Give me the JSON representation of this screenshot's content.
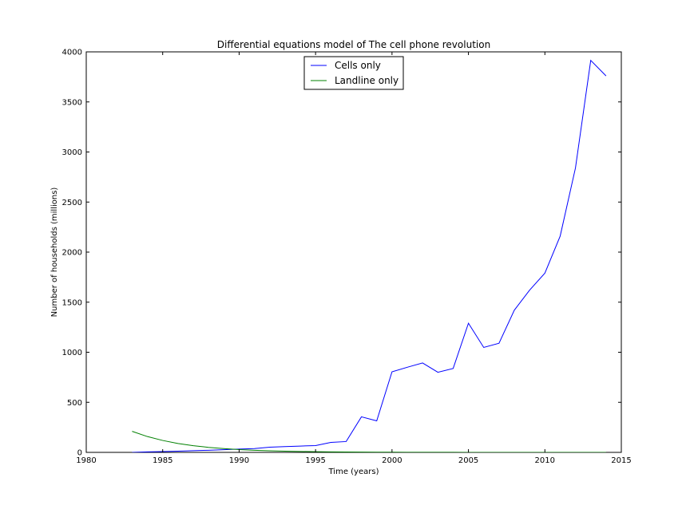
{
  "chart_data": {
    "type": "line",
    "title": "Differential equations model of The cell phone revolution",
    "xlabel": "Time (years)",
    "ylabel": "Number of households (millions)",
    "xlim": [
      1980,
      2015
    ],
    "ylim": [
      0,
      4000
    ],
    "xticks": [
      1980,
      1985,
      1990,
      1995,
      2000,
      2005,
      2010,
      2015
    ],
    "yticks": [
      0,
      500,
      1000,
      1500,
      2000,
      2500,
      3000,
      3500,
      4000
    ],
    "grid": false,
    "legend": "upper-center",
    "series": [
      {
        "name": "Cells only",
        "color": "#0000ff",
        "x": [
          1983,
          1984,
          1985,
          1986,
          1987,
          1988,
          1989,
          1990,
          1991,
          1992,
          1993,
          1994,
          1995,
          1996,
          1997,
          1998,
          1999,
          2000,
          2001,
          2002,
          2003,
          2004,
          2005,
          2006,
          2007,
          2008,
          2009,
          2010,
          2011,
          2012,
          2013,
          2014
        ],
        "y": [
          0,
          5,
          8,
          12,
          17,
          21,
          27,
          33,
          38,
          52,
          58,
          63,
          68,
          100,
          108,
          355,
          315,
          805,
          850,
          893,
          800,
          838,
          1290,
          1048,
          1090,
          1420,
          1620,
          1790,
          2160,
          2840,
          3915,
          3760
        ]
      },
      {
        "name": "Landline only",
        "color": "#008000",
        "x": [
          1983,
          1984,
          1985,
          1986,
          1987,
          1988,
          1989,
          1990,
          1991,
          1992,
          1993,
          1994,
          1995,
          1996,
          1997,
          1998,
          1999,
          2000,
          2001,
          2002,
          2003,
          2004,
          2005,
          2006,
          2007,
          2008,
          2009,
          2010,
          2011,
          2012,
          2013,
          2014
        ],
        "y": [
          210,
          158,
          119,
          89,
          67,
          50,
          38,
          28,
          21,
          16,
          12,
          9,
          7,
          5,
          4,
          3,
          2,
          2,
          1,
          1,
          1,
          1,
          0,
          0,
          0,
          0,
          0,
          0,
          0,
          0,
          0,
          0
        ]
      }
    ]
  }
}
